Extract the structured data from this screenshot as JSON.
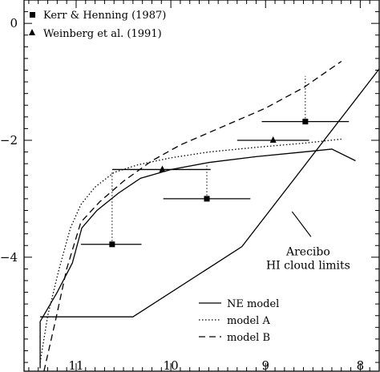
{
  "chart_data": {
    "type": "scatter",
    "title": "",
    "xlabel": "",
    "ylabel": "",
    "x_reversed": true,
    "xlim": [
      11.55,
      7.8
    ],
    "ylim": [
      -5.95,
      0.4
    ],
    "xticks": [
      11,
      10,
      9,
      8
    ],
    "yticks": [
      0,
      -2,
      -4
    ],
    "tick_labels": {
      "x": [
        "11",
        "10",
        "9",
        "8"
      ],
      "y": [
        "0",
        "−2",
        "−4"
      ]
    },
    "grid": false,
    "legend_points_position": "top-left",
    "legend_lines_position": "bottom-right",
    "points": [
      {
        "name": "Kerr & Henning (1987)",
        "marker": "square",
        "values": [
          {
            "x": 10.62,
            "y": -3.78,
            "xerr_low": 10.95,
            "xerr_high": 10.31
          },
          {
            "x": 9.62,
            "y": -3.0,
            "xerr_low": 10.08,
            "xerr_high": 9.16
          },
          {
            "x": 8.58,
            "y": -1.68,
            "xerr_low": 9.04,
            "xerr_high": 8.12
          }
        ]
      },
      {
        "name": "Weinberg et al. (1991)",
        "marker": "triangle",
        "values": [
          {
            "x": 10.09,
            "y": -2.5,
            "xerr_low": 10.62,
            "xerr_high": 9.58
          },
          {
            "x": 8.92,
            "y": -2.0,
            "xerr_low": 9.3,
            "xerr_high": 8.54
          }
        ]
      }
    ],
    "connectors": [
      {
        "x": 10.62,
        "y_from": -3.78,
        "y_to": -2.55
      },
      {
        "x": 9.62,
        "y_from": -3.0,
        "y_to": -2.43
      },
      {
        "x": 8.58,
        "y_from": -1.68,
        "y_to": -0.9
      }
    ],
    "series": [
      {
        "name": "NE model",
        "style": "solid",
        "x": [
          11.38,
          11.38,
          11.2,
          11.04,
          10.94,
          10.78,
          10.55,
          10.32,
          10.0,
          9.6,
          9.1,
          8.6,
          8.3,
          8.05
        ],
        "y": [
          -5.9,
          -5.1,
          -4.6,
          -4.1,
          -3.5,
          -3.2,
          -2.9,
          -2.65,
          -2.5,
          -2.38,
          -2.28,
          -2.2,
          -2.15,
          -2.35
        ]
      },
      {
        "name": "model A",
        "style": "dotted",
        "x": [
          11.38,
          11.3,
          11.18,
          11.06,
          10.95,
          10.8,
          10.6,
          10.35,
          10.0,
          9.6,
          9.1,
          8.6,
          8.2
        ],
        "y": [
          -5.8,
          -5.0,
          -4.2,
          -3.5,
          -3.1,
          -2.8,
          -2.55,
          -2.42,
          -2.3,
          -2.2,
          -2.12,
          -2.05,
          -1.98
        ]
      },
      {
        "name": "model B",
        "style": "dashed",
        "x": [
          11.34,
          11.22,
          11.1,
          10.95,
          10.75,
          10.5,
          10.2,
          9.9,
          9.5,
          9.0,
          8.6,
          8.2
        ],
        "y": [
          -5.95,
          -5.1,
          -4.2,
          -3.4,
          -3.05,
          -2.7,
          -2.35,
          -2.08,
          -1.8,
          -1.45,
          -1.1,
          -0.65
        ]
      },
      {
        "name": "Arecibo HI cloud limits",
        "style": "solid",
        "x": [
          11.38,
          10.4,
          9.25,
          7.8
        ],
        "y": [
          -5.02,
          -5.02,
          -3.82,
          -0.78
        ]
      }
    ],
    "legend_points": [
      "Kerr & Henning (1987)",
      "Weinberg et al. (1991)"
    ],
    "legend_lines": [
      "NE model",
      "model A",
      "model B"
    ],
    "annotations": [
      {
        "text": "Arecibo",
        "x": 8.55,
        "y": -3.9
      },
      {
        "text": "HI cloud limits",
        "x": 8.55,
        "y": -4.13
      }
    ]
  }
}
